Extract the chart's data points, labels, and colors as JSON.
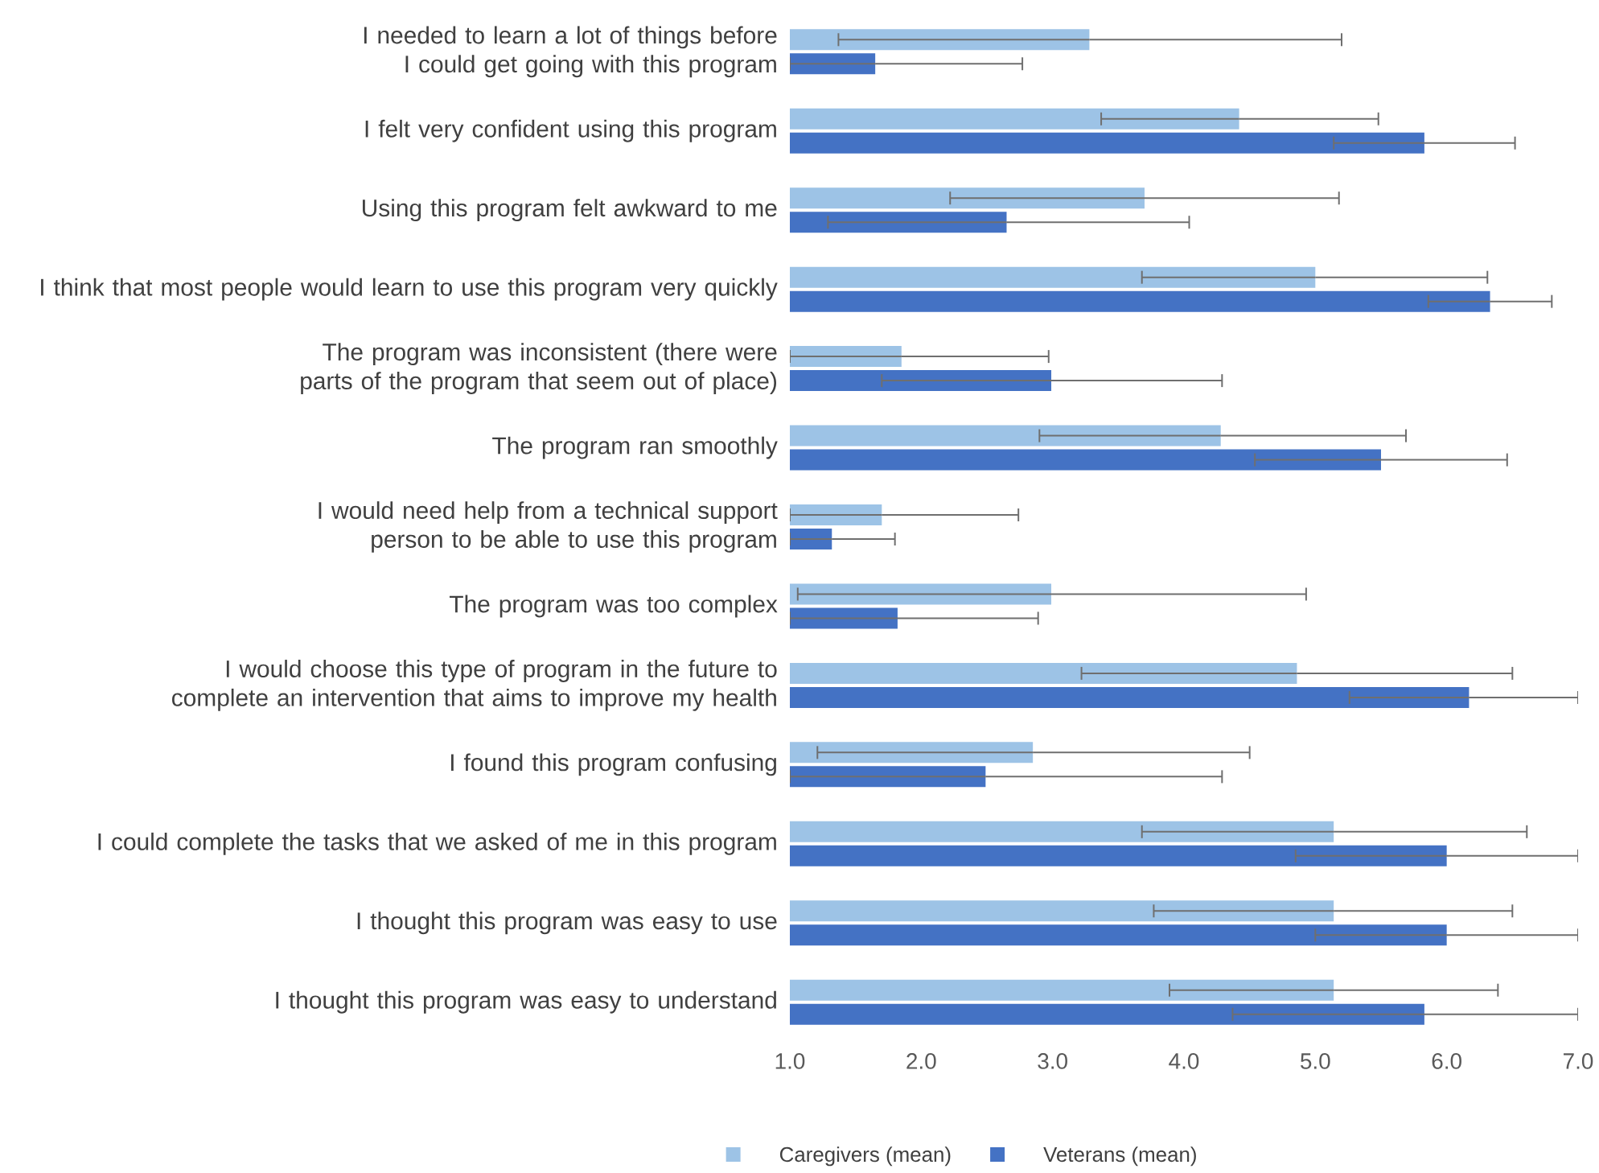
{
  "chart_data": {
    "type": "bar",
    "orientation": "horizontal",
    "categories": [
      "I needed to learn a lot of things before I could get going with this program",
      "I felt very confident using this program",
      "Using this program felt awkward to me",
      "I think that most people would learn to use this program very quickly",
      "The program was inconsistent (there were parts of the program that seem out of place)",
      "The program ran smoothly",
      "I would need help from a technical support person to be able to use this program",
      "The program was too complex",
      "I would choose this type of program in the future to complete an intervention that aims to improve my health",
      "I found this program confusing",
      "I could complete the tasks that we asked of me in this program",
      "I thought this program was easy to use",
      "I thought this program was easy to understand"
    ],
    "series": [
      {
        "name": "Caregivers (mean)",
        "color": "#9dc3e6",
        "values": [
          3.28,
          4.42,
          3.7,
          5.0,
          1.85,
          4.28,
          1.7,
          2.99,
          4.86,
          2.85,
          5.14,
          5.14,
          5.14
        ],
        "errors": [
          [
            1.37,
            5.2
          ],
          [
            3.37,
            5.48
          ],
          [
            2.22,
            5.18
          ],
          [
            3.68,
            6.31
          ],
          [
            1.0,
            2.97
          ],
          [
            2.9,
            5.69
          ],
          [
            1.0,
            2.74
          ],
          [
            1.06,
            4.93
          ],
          [
            3.22,
            6.5
          ],
          [
            1.21,
            4.5
          ],
          [
            3.68,
            6.61
          ],
          [
            3.77,
            6.5
          ],
          [
            3.89,
            6.39
          ]
        ]
      },
      {
        "name": "Veterans (mean)",
        "color": "#4472c4",
        "values": [
          1.65,
          5.83,
          2.65,
          6.33,
          2.99,
          5.5,
          1.32,
          1.82,
          6.17,
          2.49,
          6.0,
          6.0,
          5.83
        ],
        "errors": [
          [
            1.0,
            2.77
          ],
          [
            5.14,
            6.52
          ],
          [
            1.29,
            4.04
          ],
          [
            5.86,
            6.8
          ],
          [
            1.7,
            4.29
          ],
          [
            4.54,
            6.46
          ],
          [
            1.0,
            1.8
          ],
          [
            1.0,
            2.89
          ],
          [
            5.26,
            7.0
          ],
          [
            1.0,
            4.29
          ],
          [
            4.85,
            7.0
          ],
          [
            5.0,
            7.0
          ],
          [
            4.37,
            7.0
          ]
        ]
      }
    ],
    "xlim": [
      1.0,
      7.0
    ],
    "xticks": [
      {
        "value": 1,
        "label": "1.0"
      },
      {
        "value": 2,
        "label": "2.0"
      },
      {
        "value": 3,
        "label": "3.0"
      },
      {
        "value": 4,
        "label": "4.0"
      },
      {
        "value": 5,
        "label": "5.0"
      },
      {
        "value": 6,
        "label": "6.0"
      },
      {
        "value": 7,
        "label": "7.0"
      }
    ],
    "legend": "bottom"
  }
}
